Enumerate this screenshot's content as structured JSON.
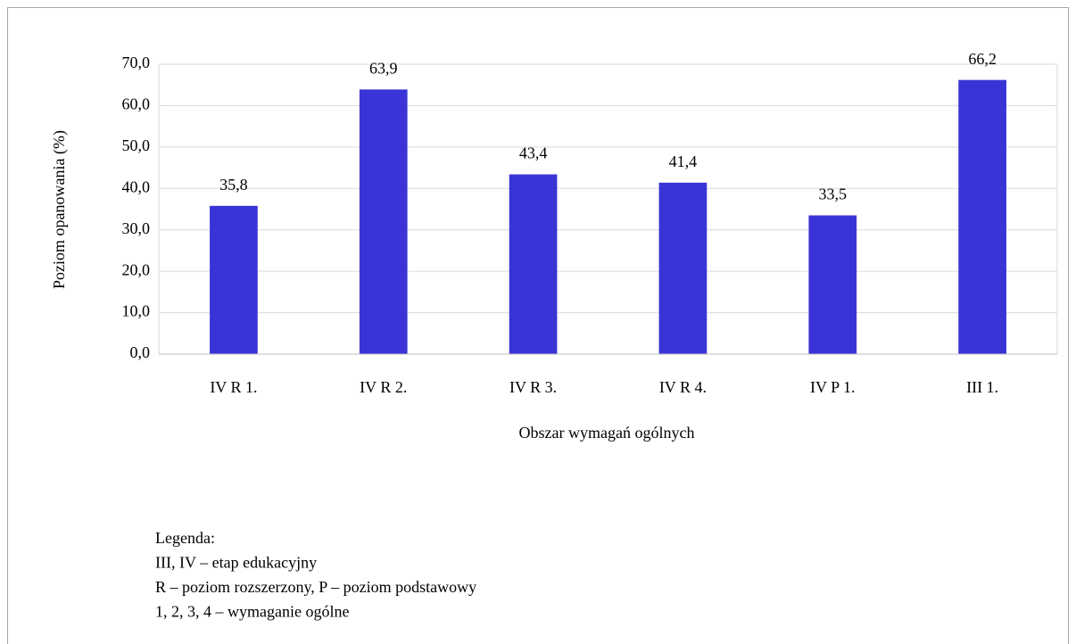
{
  "chart_data": {
    "type": "bar",
    "categories": [
      "IV R 1.",
      "IV R 2.",
      "IV R 3.",
      "IV R 4.",
      "IV P 1.",
      "III 1."
    ],
    "values": [
      35.8,
      63.9,
      43.4,
      41.4,
      33.5,
      66.2
    ],
    "value_labels": [
      "35,8",
      "63,9",
      "43,4",
      "41,4",
      "33,5",
      "66,2"
    ],
    "color": "#3a34d6",
    "ylim": [
      0,
      70
    ],
    "yticks": [
      {
        "value": 0,
        "label": "0,0"
      },
      {
        "value": 10,
        "label": "10,0"
      },
      {
        "value": 20,
        "label": "20,0"
      },
      {
        "value": 30,
        "label": "30,0"
      },
      {
        "value": 40,
        "label": "40,0"
      },
      {
        "value": 50,
        "label": "50,0"
      },
      {
        "value": 60,
        "label": "60,0"
      },
      {
        "value": 70,
        "label": "70,0"
      }
    ],
    "grid": true,
    "x_label": "Obszar wymagań ogólnych",
    "y_label": "Poziom opanowania (%)",
    "notes": [
      "Legenda:",
      "III, IV – etap edukacyjny",
      "R – poziom rozszerzony, P – poziom podstawowy",
      "1, 2, 3, 4 – wymaganie ogólne"
    ]
  }
}
